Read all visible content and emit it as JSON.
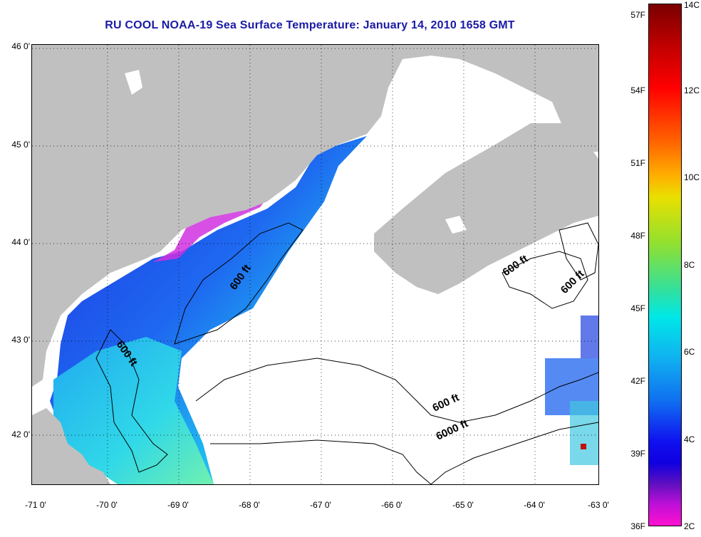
{
  "title": "RU COOL  NOAA-19  Sea Surface Temperature:  January 14, 2010 1658 GMT",
  "lat_ticks": [
    "46 0'",
    "45 0'",
    "44 0'",
    "43 0'",
    "42 0'"
  ],
  "lon_ticks": [
    "-71 0'",
    "-70 0'",
    "-69 0'",
    "-68 0'",
    "-67 0'",
    "-66 0'",
    "-65 0'",
    "-64 0'",
    "-63 0'"
  ],
  "colorbar": {
    "f_labels": [
      "57F",
      "54F",
      "51F",
      "48F",
      "45F",
      "42F",
      "39F",
      "36F"
    ],
    "c_labels": [
      "14C",
      "12C",
      "10C",
      "8C",
      "6C",
      "4C",
      "2C"
    ]
  },
  "contours": {
    "c600_a": "600 ft",
    "c600_b": "600 ft",
    "c600_c": "600 ft",
    "c600_d": "600 ft",
    "c600_e": "600 ft",
    "c6000": "6000 ft"
  },
  "colors": {
    "land": "#c0c0c0",
    "water_cloud": "#ffffff",
    "title": "#1a1aa6",
    "sst_cold": "#1e3ce8",
    "sst_mid": "#1eb0f0",
    "sst_warm": "#38e0d8",
    "coast_warm": "#e020e0"
  }
}
